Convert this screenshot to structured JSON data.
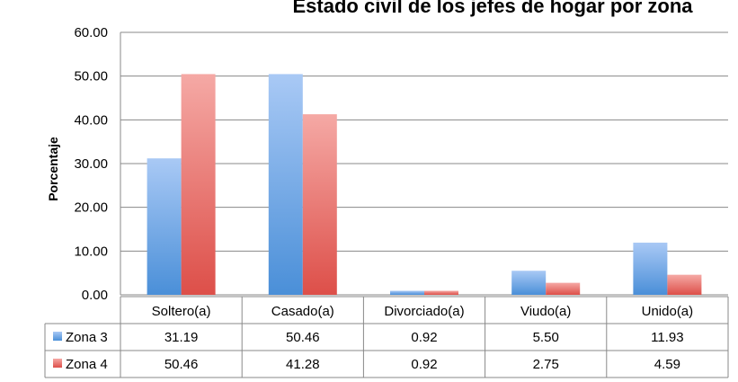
{
  "chart_data": {
    "type": "bar",
    "title": "Estado civil de los jefes de hogar por zona",
    "ylabel": "Porcentaje",
    "xlabel": "",
    "ylim": [
      0,
      60
    ],
    "yticks": [
      "0.00",
      "10.00",
      "20.00",
      "30.00",
      "40.00",
      "50.00",
      "60.00"
    ],
    "grid": true,
    "legend": "data-table",
    "categories": [
      "Soltero(a)",
      "Casado(a)",
      "Divorciado(a)",
      "Viudo(a)",
      "Unido(a)"
    ],
    "series": [
      {
        "name": "Zona 3",
        "values": [
          31.19,
          50.46,
          0.92,
          5.5,
          11.93
        ],
        "labels": [
          "31.19",
          "50.46",
          "0.92",
          "5.50",
          "11.93"
        ],
        "color": "#5b9bd5"
      },
      {
        "name": "Zona 4",
        "values": [
          50.46,
          41.28,
          0.92,
          2.75,
          4.59
        ],
        "labels": [
          "50.46",
          "41.28",
          "0.92",
          "2.75",
          "4.59"
        ],
        "color": "#e0514b"
      }
    ]
  }
}
